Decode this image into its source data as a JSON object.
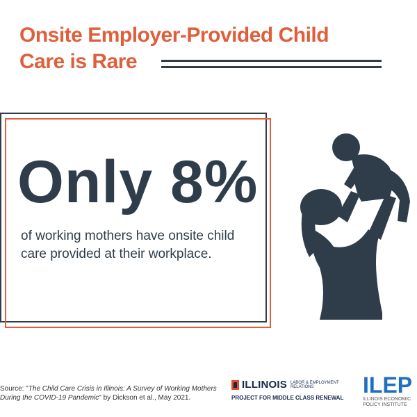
{
  "title": {
    "line1": "Onsite Employer-Provided Child",
    "line2": "Care is Rare"
  },
  "stat": {
    "headline": "Only 8%",
    "value_percent": 8,
    "description": "of working mothers have onsite child care provided at their workplace."
  },
  "source": {
    "prefix": "Source: \"",
    "title": "The Child Care Crisis in Illinois: A Survey of Working Mothers During the COVID-19 Pandemic",
    "suffix": "\" by Dickson et al., May 2021."
  },
  "logos": {
    "illinois": {
      "name": "ILLINOIS",
      "dept": "LABOR & EMPLOYMENT RELATIONS",
      "project": "PROJECT FOR MIDDLE CLASS RENEWAL"
    },
    "ilep": {
      "name": "ILEP",
      "subtitle": "ILLINOIS ECONOMIC POLICY INSTITUTE"
    }
  },
  "colors": {
    "accent": "#df5f3c",
    "dark": "#2f3d4a",
    "ilep_blue": "#1e6fbf"
  }
}
